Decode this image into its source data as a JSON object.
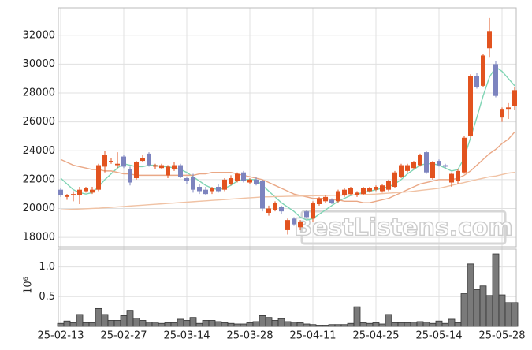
{
  "chart_data": [
    {
      "type": "candlestick",
      "up_color": "#e2531f",
      "down_color": "#7d84bf",
      "ylim": [
        17350,
        33900
      ],
      "yticks": [
        18000,
        20000,
        22000,
        24000,
        26000,
        28000,
        30000,
        32000
      ],
      "grid": true,
      "watermark": "BestListens.com",
      "open": [
        21300,
        20800,
        20900,
        20900,
        21200,
        21100,
        21300,
        22900,
        23200,
        23000,
        23600,
        22700,
        22100,
        23300,
        23800,
        22900,
        22800,
        22300,
        22700,
        23000,
        22100,
        22200,
        21500,
        21300,
        21200,
        21500,
        21300,
        21700,
        21900,
        22500,
        21800,
        22000,
        21900,
        19700,
        19900,
        20100,
        18500,
        19300,
        18700,
        19800,
        19300,
        20300,
        20500,
        20600,
        20500,
        20900,
        21000,
        20900,
        21000,
        21200,
        21300,
        21200,
        21300,
        21500,
        22200,
        22600,
        22800,
        23000,
        23900,
        22100,
        23300,
        23000,
        21800,
        21900,
        22500,
        25000,
        29200,
        28500,
        31100,
        30000,
        26300,
        26900,
        27100
      ],
      "high": [
        21400,
        21000,
        21200,
        21500,
        21500,
        21500,
        23100,
        24000,
        23500,
        23900,
        23700,
        22900,
        23300,
        23700,
        23900,
        23100,
        23100,
        23000,
        23200,
        23100,
        22200,
        22400,
        21700,
        21500,
        21500,
        21700,
        22100,
        22300,
        22500,
        22600,
        22100,
        22200,
        22000,
        20200,
        20500,
        20200,
        19300,
        19400,
        19200,
        19900,
        20500,
        20800,
        20900,
        20700,
        21300,
        21400,
        21500,
        21200,
        21500,
        21500,
        21600,
        21700,
        22000,
        22600,
        23100,
        23100,
        23300,
        23800,
        24000,
        23300,
        23400,
        23100,
        22500,
        22700,
        25000,
        29300,
        29400,
        30700,
        33200,
        30200,
        27000,
        27300,
        28400
      ],
      "low": [
        20800,
        20600,
        20500,
        20300,
        21100,
        21000,
        21200,
        22500,
        23100,
        22800,
        22800,
        21600,
        22000,
        23200,
        22900,
        22700,
        22700,
        22100,
        22600,
        22100,
        21700,
        21100,
        21000,
        20900,
        21000,
        21100,
        21200,
        21600,
        21800,
        21800,
        21700,
        21600,
        19800,
        19500,
        19800,
        19600,
        18200,
        18800,
        18500,
        19300,
        19100,
        20200,
        20400,
        20300,
        20400,
        20800,
        20900,
        20800,
        20900,
        21100,
        21200,
        21100,
        21200,
        21400,
        22100,
        22500,
        22700,
        22900,
        22400,
        22000,
        22900,
        22800,
        21500,
        21700,
        22400,
        24900,
        28300,
        28400,
        30500,
        27700,
        26000,
        26200,
        26800
      ],
      "close": [
        20900,
        20900,
        21000,
        21300,
        21400,
        21300,
        23000,
        23700,
        23300,
        23100,
        22900,
        21800,
        23200,
        23500,
        23000,
        23000,
        23000,
        22900,
        23000,
        22200,
        21900,
        21300,
        21200,
        21000,
        21400,
        21200,
        22000,
        22100,
        22400,
        21900,
        22000,
        21700,
        20000,
        20000,
        20400,
        19800,
        19200,
        18900,
        19100,
        19400,
        20400,
        20700,
        20800,
        20400,
        21200,
        21300,
        21400,
        21100,
        21400,
        21400,
        21500,
        21600,
        21900,
        22500,
        23000,
        23000,
        23200,
        23700,
        22500,
        23200,
        23000,
        22900,
        22400,
        22600,
        24900,
        29200,
        28400,
        30600,
        32300,
        27800,
        26900,
        27000,
        28200
      ],
      "series": [
        {
          "color": "#7fd4b4",
          "values": [
            22100,
            21700,
            21300,
            21100,
            21000,
            21100,
            21500,
            22000,
            22400,
            22800,
            23100,
            23000,
            22900,
            22900,
            23000,
            23000,
            22900,
            22900,
            22800,
            22700,
            22500,
            22200,
            21900,
            21600,
            21400,
            21300,
            21400,
            21600,
            21900,
            22000,
            22000,
            22000,
            21600,
            21200,
            20800,
            20400,
            20100,
            19800,
            19400,
            19200,
            19300,
            19600,
            19900,
            20200,
            20500,
            20700,
            20900,
            21000,
            21100,
            21200,
            21300,
            21400,
            21500,
            21700,
            22000,
            22400,
            22700,
            23000,
            23100,
            23100,
            23000,
            22800,
            22600,
            22700,
            23500,
            24900,
            26300,
            27800,
            29100,
            29800,
            29500,
            29000,
            28500
          ]
        },
        {
          "color": "#eaa886",
          "values": [
            23400,
            23200,
            23000,
            22900,
            22800,
            22700,
            22700,
            22600,
            22600,
            22500,
            22400,
            22400,
            22300,
            22300,
            22300,
            22300,
            22300,
            22300,
            22300,
            22300,
            22300,
            22300,
            22400,
            22400,
            22500,
            22500,
            22500,
            22500,
            22400,
            22300,
            22200,
            22100,
            22000,
            21800,
            21600,
            21400,
            21200,
            21000,
            20900,
            20800,
            20700,
            20700,
            20700,
            20600,
            20600,
            20500,
            20500,
            20500,
            20400,
            20400,
            20500,
            20600,
            20700,
            20900,
            21100,
            21300,
            21500,
            21700,
            21800,
            21900,
            22000,
            22000,
            22000,
            22100,
            22300,
            22600,
            23000,
            23400,
            23800,
            24100,
            24500,
            24800,
            25300
          ]
        },
        {
          "color": "#f0c2a4",
          "values": [
            19900,
            19920,
            19940,
            19960,
            19980,
            20000,
            20020,
            20050,
            20080,
            20110,
            20140,
            20170,
            20200,
            20230,
            20260,
            20290,
            20320,
            20350,
            20380,
            20410,
            20440,
            20470,
            20500,
            20530,
            20560,
            20590,
            20620,
            20650,
            20680,
            20710,
            20740,
            20770,
            20800,
            20810,
            20820,
            20830,
            20840,
            20850,
            20860,
            20870,
            20880,
            20890,
            20900,
            20910,
            20920,
            20930,
            20940,
            20950,
            20960,
            20980,
            21000,
            21030,
            21060,
            21090,
            21120,
            21150,
            21200,
            21250,
            21300,
            21350,
            21400,
            21500,
            21600,
            21700,
            21800,
            21900,
            22000,
            22100,
            22200,
            22250,
            22350,
            22450,
            22500
          ]
        }
      ]
    },
    {
      "type": "bar",
      "color": "#7a7a7a",
      "ylabel": "10⁶",
      "ylim": [
        0,
        1.3
      ],
      "yticks": [
        {
          "value": 0.5,
          "label": "0.5"
        },
        {
          "value": 1,
          "label": "1.0"
        }
      ],
      "grid": true,
      "categories": [
        "25-02-13",
        null,
        null,
        null,
        null,
        null,
        null,
        null,
        null,
        null,
        "25-02-27",
        null,
        null,
        null,
        null,
        null,
        null,
        null,
        null,
        null,
        "25-03-14",
        null,
        null,
        null,
        null,
        null,
        null,
        null,
        null,
        null,
        "25-03-28",
        null,
        null,
        null,
        null,
        null,
        null,
        null,
        null,
        null,
        "25-04-11",
        null,
        null,
        null,
        null,
        null,
        null,
        null,
        null,
        null,
        "25-04-25",
        null,
        null,
        null,
        null,
        null,
        null,
        null,
        null,
        null,
        "25-05-14",
        null,
        null,
        null,
        null,
        null,
        null,
        null,
        null,
        null,
        "25-05-28",
        null,
        null
      ],
      "values": [
        0.05,
        0.09,
        0.06,
        0.2,
        0.06,
        0.06,
        0.3,
        0.2,
        0.1,
        0.1,
        0.18,
        0.27,
        0.14,
        0.1,
        0.07,
        0.07,
        0.05,
        0.06,
        0.06,
        0.12,
        0.1,
        0.15,
        0.05,
        0.1,
        0.1,
        0.08,
        0.06,
        0.05,
        0.04,
        0.04,
        0.06,
        0.08,
        0.18,
        0.15,
        0.1,
        0.13,
        0.08,
        0.07,
        0.06,
        0.04,
        0.03,
        0.02,
        0.02,
        0.03,
        0.03,
        0.03,
        0.05,
        0.33,
        0.06,
        0.05,
        0.06,
        0.04,
        0.2,
        0.06,
        0.06,
        0.06,
        0.07,
        0.08,
        0.07,
        0.05,
        0.09,
        0.05,
        0.12,
        0.06,
        0.55,
        1.05,
        0.62,
        0.68,
        0.52,
        1.22,
        0.53,
        0.4,
        0.4
      ]
    }
  ]
}
